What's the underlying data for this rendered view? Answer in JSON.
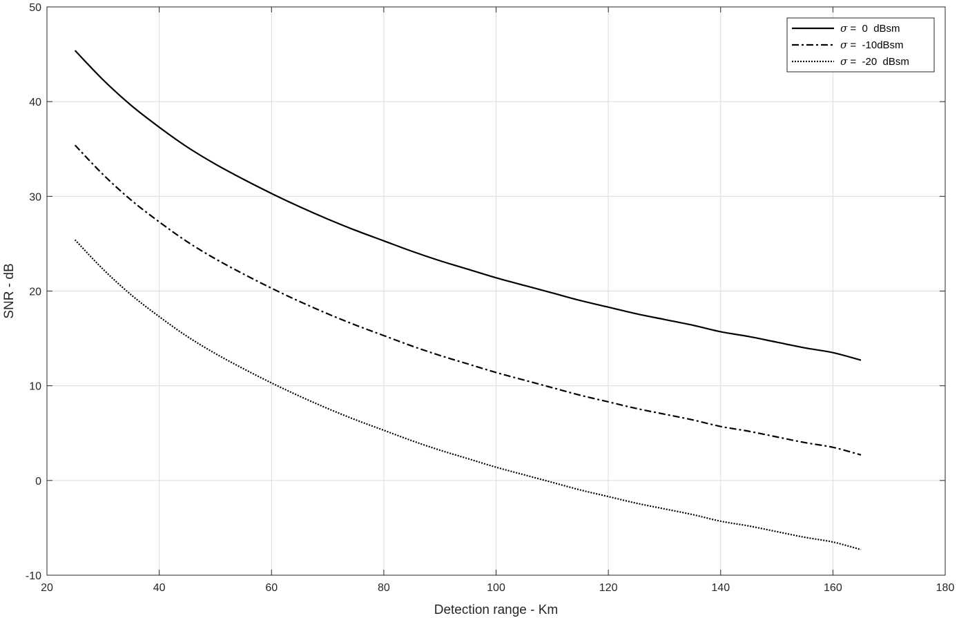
{
  "chart_data": {
    "type": "line",
    "title": "",
    "xlabel": "Detection range - Km",
    "ylabel": "SNR - dB",
    "xlim": [
      20,
      180
    ],
    "ylim": [
      -10,
      50
    ],
    "xticks": [
      20,
      40,
      60,
      80,
      100,
      120,
      140,
      160,
      180
    ],
    "yticks": [
      -10,
      0,
      10,
      20,
      30,
      40,
      50
    ],
    "grid": true,
    "legend_position": "top-right",
    "x": [
      25,
      30,
      35,
      40,
      45,
      50,
      55,
      60,
      65,
      70,
      75,
      80,
      85,
      90,
      95,
      100,
      105,
      110,
      115,
      120,
      125,
      130,
      135,
      140,
      145,
      150,
      155,
      160,
      165
    ],
    "series": [
      {
        "name": "σ = 0 dBsm",
        "dash": "solid",
        "values": [
          45.4,
          42.3,
          39.6,
          37.3,
          35.2,
          33.4,
          31.8,
          30.3,
          28.9,
          27.6,
          26.4,
          25.3,
          24.2,
          23.2,
          22.3,
          21.4,
          20.6,
          19.8,
          19.0,
          18.3,
          17.6,
          17.0,
          16.4,
          15.7,
          15.2,
          14.6,
          14.0,
          13.5,
          12.7
        ]
      },
      {
        "name": "σ = -10dBsm",
        "dash": "dashdot",
        "values": [
          35.4,
          32.3,
          29.6,
          27.3,
          25.2,
          23.4,
          21.8,
          20.3,
          18.9,
          17.6,
          16.4,
          15.3,
          14.2,
          13.2,
          12.3,
          11.4,
          10.6,
          9.8,
          9.0,
          8.3,
          7.6,
          7.0,
          6.4,
          5.7,
          5.2,
          4.6,
          4.0,
          3.5,
          2.7
        ]
      },
      {
        "name": "σ = -20 dBsm",
        "dash": "dotted",
        "values": [
          25.4,
          22.3,
          19.6,
          17.3,
          15.2,
          13.4,
          11.8,
          10.3,
          8.9,
          7.6,
          6.4,
          5.3,
          4.2,
          3.2,
          2.3,
          1.4,
          0.6,
          -0.2,
          -1.0,
          -1.7,
          -2.4,
          -3.0,
          -3.6,
          -4.3,
          -4.8,
          -5.4,
          -6.0,
          -6.5,
          -7.3
        ]
      }
    ],
    "legend": {
      "entries": [
        {
          "symbol": "σ",
          "text": " =  0  dBsm"
        },
        {
          "symbol": "σ",
          "text": " =  -10dBsm"
        },
        {
          "symbol": "σ",
          "text": " =  -20  dBsm"
        }
      ]
    }
  }
}
